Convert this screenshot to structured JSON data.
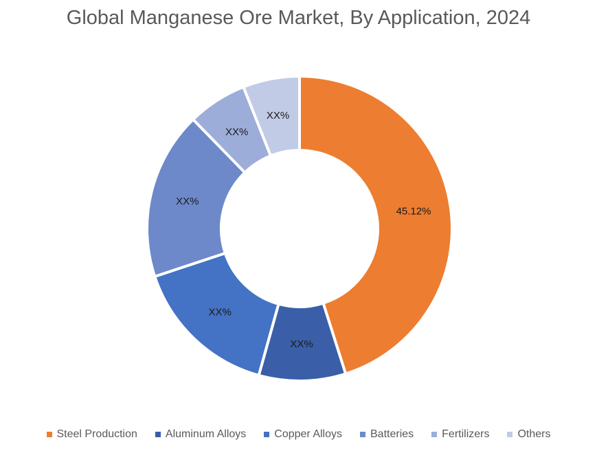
{
  "chart_data": {
    "type": "pie",
    "subtype": "donut",
    "title": "Global Manganese Ore Market, By Application, 2024",
    "categories": [
      "Steel Production",
      "Aluminum Alloys",
      "Copper Alloys",
      "Batteries",
      "Fertilizers",
      "Others"
    ],
    "values": [
      45.12,
      9.2,
      15.6,
      17.8,
      6.3,
      6.0
    ],
    "labels": [
      "45.12%",
      "XX%",
      "XX%",
      "XX%",
      "XX%",
      "XX%"
    ],
    "colors": [
      "#ED7D31",
      "#3A5FA8",
      "#4472C4",
      "#6D89CA",
      "#9DADD9",
      "#C1CBE5"
    ],
    "legend_position": "bottom",
    "start_angle_deg": 0,
    "direction": "clockwise"
  },
  "legend": {
    "items": [
      {
        "label": "Steel Production",
        "color": "#ED7D31"
      },
      {
        "label": "Aluminum Alloys",
        "color": "#3A5FA8"
      },
      {
        "label": "Copper Alloys",
        "color": "#4472C4"
      },
      {
        "label": "Batteries",
        "color": "#6D89CA"
      },
      {
        "label": "Fertilizers",
        "color": "#9DADD9"
      },
      {
        "label": "Others",
        "color": "#C1CBE5"
      }
    ]
  }
}
